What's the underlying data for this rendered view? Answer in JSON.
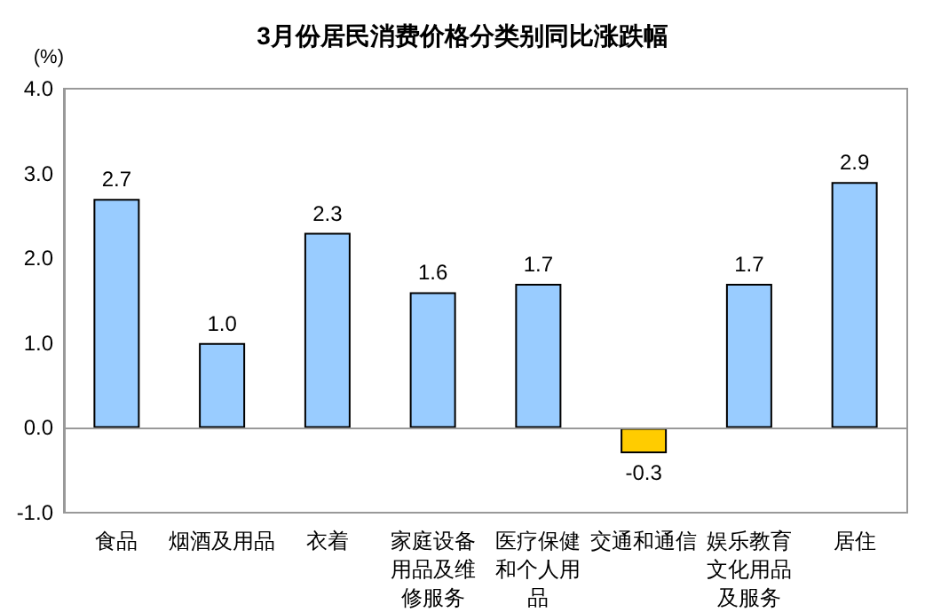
{
  "chart_data": {
    "type": "bar",
    "title": "3月份居民消费价格分类别同比涨跌幅",
    "ylabel": "(%)",
    "categories": [
      "食品",
      "烟酒及用品",
      "衣着",
      "家庭设备用品及维修服务",
      "医疗保健和个人用品",
      "交通和通信",
      "娱乐教育文化用品及服务",
      "居住"
    ],
    "values": [
      2.7,
      1.0,
      2.3,
      1.6,
      1.7,
      -0.3,
      1.7,
      2.9
    ],
    "value_labels": [
      "2.7",
      "1.0",
      "2.3",
      "1.6",
      "1.7",
      "-0.3",
      "1.7",
      "2.9"
    ],
    "colors": [
      "#99ccff",
      "#99ccff",
      "#99ccff",
      "#99ccff",
      "#99ccff",
      "#ffcc00",
      "#99ccff",
      "#99ccff"
    ],
    "ylim": [
      -1.0,
      4.0
    ],
    "yticks": [
      {
        "value": -1,
        "label": "-1.0"
      },
      {
        "value": 0,
        "label": "0.0"
      },
      {
        "value": 1,
        "label": "1.0"
      },
      {
        "value": 2,
        "label": "2.0"
      },
      {
        "value": 3,
        "label": "3.0"
      },
      {
        "value": 4,
        "label": "4.0"
      }
    ],
    "ref_lines": [
      {
        "axis": "y",
        "value": 0
      }
    ]
  }
}
